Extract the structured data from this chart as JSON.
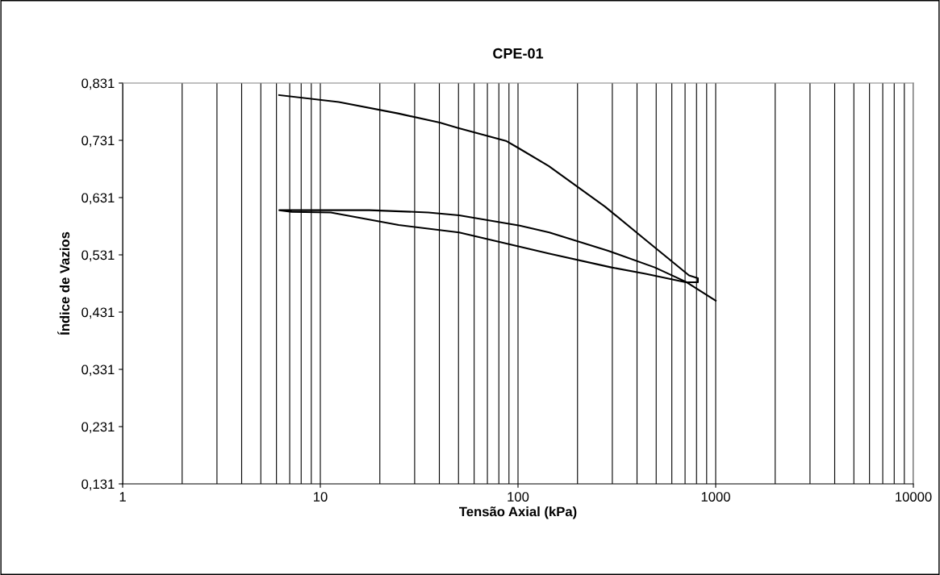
{
  "chart_data": {
    "type": "line",
    "title": "CPE-01",
    "xlabel": "Tensão Axial (kPa)",
    "ylabel": "Índice de Vazios",
    "log": "x",
    "grid": "x",
    "color": "#000000",
    "marker": "none",
    "line_style": "solid",
    "x": [
      6.19,
      12.4,
      24.7,
      40.2,
      49.4,
      86.9,
      100,
      143,
      276,
      442,
      733,
      813,
      813,
      706,
      442,
      297,
      144,
      50.4,
      24.9,
      11.3,
      7.16,
      6.2,
      17.7,
      35.2,
      50.4,
      102,
      144,
      286,
      492,
      706,
      1000
    ],
    "values": [
      0.81,
      0.798,
      0.778,
      0.762,
      0.753,
      0.73,
      0.718,
      0.686,
      0.615,
      0.557,
      0.495,
      0.49,
      0.483,
      0.483,
      0.498,
      0.509,
      0.533,
      0.57,
      0.583,
      0.605,
      0.606,
      0.609,
      0.609,
      0.605,
      0.6,
      0.582,
      0.57,
      0.538,
      0.509,
      0.484,
      0.451
    ],
    "xlim": [
      1,
      10000
    ],
    "xticks": [
      1,
      10,
      100,
      1000,
      10000
    ],
    "ylim": [
      0.131,
      0.831
    ],
    "yticks": [
      {
        "value": 0.131,
        "label": "0,131"
      },
      {
        "value": 0.231,
        "label": "0,231"
      },
      {
        "value": 0.331,
        "label": "0,331"
      },
      {
        "value": 0.431,
        "label": "0,431"
      },
      {
        "value": 0.531,
        "label": "0,531"
      },
      {
        "value": 0.631,
        "label": "0,631"
      },
      {
        "value": 0.731,
        "label": "0,731"
      },
      {
        "value": 0.831,
        "label": "0,831"
      }
    ]
  }
}
